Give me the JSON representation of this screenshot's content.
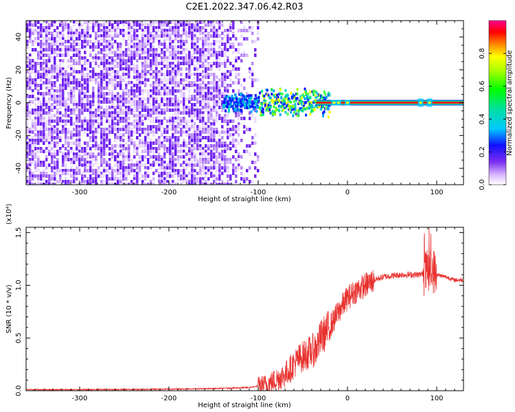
{
  "title": "C2E1.2022.347.06.42.R03",
  "colors": {
    "snr_line": "#e8322f",
    "spectrogram_noise": "#7a2df0",
    "axis": "#000000",
    "background": "#ffffff"
  },
  "chart_data": [
    {
      "type": "heatmap",
      "xlabel": "Height of straight line (km)",
      "ylabel": "Frequency (Hz)",
      "xlim": [
        -360,
        130
      ],
      "ylim": [
        -50,
        50
      ],
      "xticks": [
        -300,
        -200,
        -100,
        0,
        100
      ],
      "yticks": [
        -40,
        -20,
        0,
        20,
        40
      ],
      "grid": false,
      "colorbar": {
        "label": "Normalized spectral amplitude",
        "range": [
          0,
          1
        ],
        "ticks": [
          "0.0",
          "0.2",
          "0.4",
          "0.6",
          "0.8"
        ],
        "colormap": "rainbow (white, violet, blue, cyan, green, yellow, red, magenta)"
      },
      "description_bands": [
        {
          "x_range": [
            -360,
            -100
          ],
          "content": "broadband noise across all frequencies, amplitude ~0.1-0.25"
        },
        {
          "x_range": [
            -130,
            -30
          ],
          "content": "narrow signal near 0 Hz, spread ±8 Hz, amplitude ~0.3-0.7"
        },
        {
          "x_range": [
            -30,
            130
          ],
          "content": "tone at 0 Hz, amplitude ~0.8-1.0"
        }
      ]
    },
    {
      "type": "line",
      "xlabel": "Height of straight line (km)",
      "ylabel": "SNR (10 * v/v)",
      "yscale_label": "(x10⁴)",
      "xlim": [
        -360,
        130
      ],
      "ylim": [
        0,
        1.55
      ],
      "xticks": [
        -300,
        -200,
        -100,
        0,
        100
      ],
      "yticks": [
        "0.0",
        "0.5",
        "1.0",
        "1.5"
      ],
      "grid": false,
      "series": [
        {
          "x": [
            -360,
            -300,
            -200,
            -150,
            -110,
            -90,
            -70,
            -55,
            -45,
            -35,
            -30,
            -20,
            -10,
            0,
            10,
            20,
            30,
            40,
            50,
            60,
            70,
            80,
            90,
            95,
            100,
            110,
            120,
            130
          ],
          "y": [
            0.01,
            0.01,
            0.015,
            0.02,
            0.03,
            0.06,
            0.15,
            0.3,
            0.35,
            0.4,
            0.5,
            0.6,
            0.75,
            0.88,
            0.95,
            1.0,
            1.05,
            1.08,
            1.09,
            1.1,
            1.1,
            1.1,
            1.12,
            1.15,
            1.1,
            1.08,
            1.05,
            1.05
          ]
        }
      ]
    }
  ]
}
